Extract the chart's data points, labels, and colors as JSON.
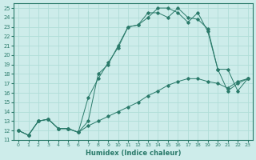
{
  "xlabel": "Humidex (Indice chaleur)",
  "xlim": [
    -0.5,
    23.5
  ],
  "ylim": [
    11,
    25.5
  ],
  "xticks": [
    0,
    1,
    2,
    3,
    4,
    5,
    6,
    7,
    8,
    9,
    10,
    11,
    12,
    13,
    14,
    15,
    16,
    17,
    18,
    19,
    20,
    21,
    22,
    23
  ],
  "yticks": [
    11,
    12,
    13,
    14,
    15,
    16,
    17,
    18,
    19,
    20,
    21,
    22,
    23,
    24,
    25
  ],
  "bg_color": "#cdecea",
  "line_color": "#2a7a6a",
  "grid_color": "#b0ddd8",
  "line1_x": [
    0,
    1,
    2,
    3,
    4,
    5,
    6,
    7,
    8,
    9,
    10,
    11,
    12,
    13,
    14,
    15,
    16,
    17,
    18,
    19,
    20,
    21,
    22,
    23
  ],
  "line1_y": [
    12,
    11.5,
    13,
    13.2,
    12.2,
    12.2,
    11.8,
    12.5,
    13.0,
    13.5,
    14.0,
    14.5,
    15.0,
    15.7,
    16.2,
    16.8,
    17.2,
    17.5,
    17.5,
    17.2,
    17.0,
    16.5,
    17.2,
    17.5
  ],
  "line2_x": [
    0,
    1,
    2,
    3,
    4,
    5,
    6,
    7,
    8,
    9,
    10,
    11,
    12,
    13,
    14,
    15,
    16,
    17,
    18,
    19,
    20,
    21,
    22,
    23
  ],
  "line2_y": [
    12,
    11.5,
    13,
    13.2,
    12.2,
    12.2,
    11.8,
    15.5,
    17.5,
    19.2,
    20.8,
    23.0,
    23.2,
    24.5,
    24.5,
    24.0,
    25.0,
    24.0,
    23.8,
    22.8,
    18.5,
    16.2,
    17.0,
    17.5
  ],
  "line3_x": [
    0,
    1,
    2,
    3,
    4,
    5,
    6,
    7,
    8,
    9,
    10,
    11,
    12,
    13,
    14,
    15,
    16,
    17,
    18,
    19,
    20,
    21,
    22,
    23
  ],
  "line3_y": [
    12,
    11.5,
    13,
    13.2,
    12.2,
    12.2,
    11.8,
    13.0,
    18.0,
    19.0,
    21.0,
    23.0,
    23.2,
    24.0,
    25.0,
    25.0,
    24.5,
    23.5,
    24.5,
    22.5,
    18.5,
    18.5,
    16.2,
    17.5
  ]
}
